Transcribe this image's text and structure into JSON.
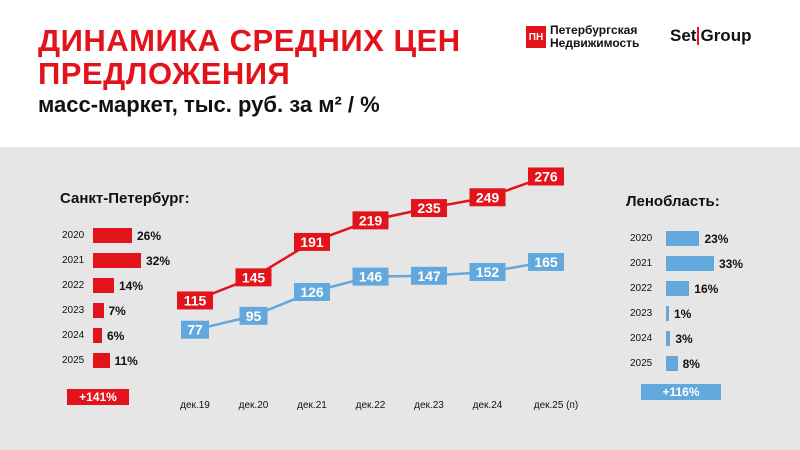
{
  "header": {
    "title_line1": "ДИНАМИКА СРЕДНИХ ЦЕН",
    "title_line2": "ПРЕДЛОЖЕНИЯ",
    "subtitle": "масс-маркет, тыс. руб. за м² / %"
  },
  "logos": {
    "pn_mark": "ПН",
    "pn_line1": "Петербургская",
    "pn_line2": "Недвижимость",
    "setgroup_left": "Set",
    "setgroup_right": "Group"
  },
  "colors": {
    "red": "#e3131b",
    "blue": "#62a8dc",
    "panel": "#e6e6e6"
  },
  "chart_data": [
    {
      "type": "bar",
      "orientation": "horizontal",
      "title": "Санкт-Петербург:",
      "categories": [
        "2020",
        "2021",
        "2022",
        "2023",
        "2024",
        "2025"
      ],
      "values": [
        26,
        32,
        14,
        7,
        6,
        11
      ],
      "value_labels": [
        "26%",
        "32%",
        "14%",
        "7%",
        "6%",
        "11%"
      ],
      "total_label": "+141%"
    },
    {
      "type": "line",
      "categories": [
        "дек.19",
        "дек.20",
        "дек.21",
        "дек.22",
        "дек.23",
        "дек.24",
        "дек.25 (п)"
      ],
      "series": [
        {
          "values": [
            115,
            145,
            191,
            219,
            235,
            249,
            276
          ],
          "color": "#e3131b"
        },
        {
          "values": [
            77,
            95,
            126,
            146,
            147,
            152,
            165
          ],
          "color": "#62a8dc"
        }
      ]
    },
    {
      "type": "bar",
      "orientation": "horizontal",
      "title": "Ленобласть:",
      "categories": [
        "2020",
        "2021",
        "2022",
        "2023",
        "2024",
        "2025"
      ],
      "values": [
        23,
        33,
        16,
        1,
        3,
        8
      ],
      "value_labels": [
        "23%",
        "33%",
        "16%",
        "1%",
        "3%",
        "8%"
      ],
      "total_label": "+116%"
    }
  ]
}
